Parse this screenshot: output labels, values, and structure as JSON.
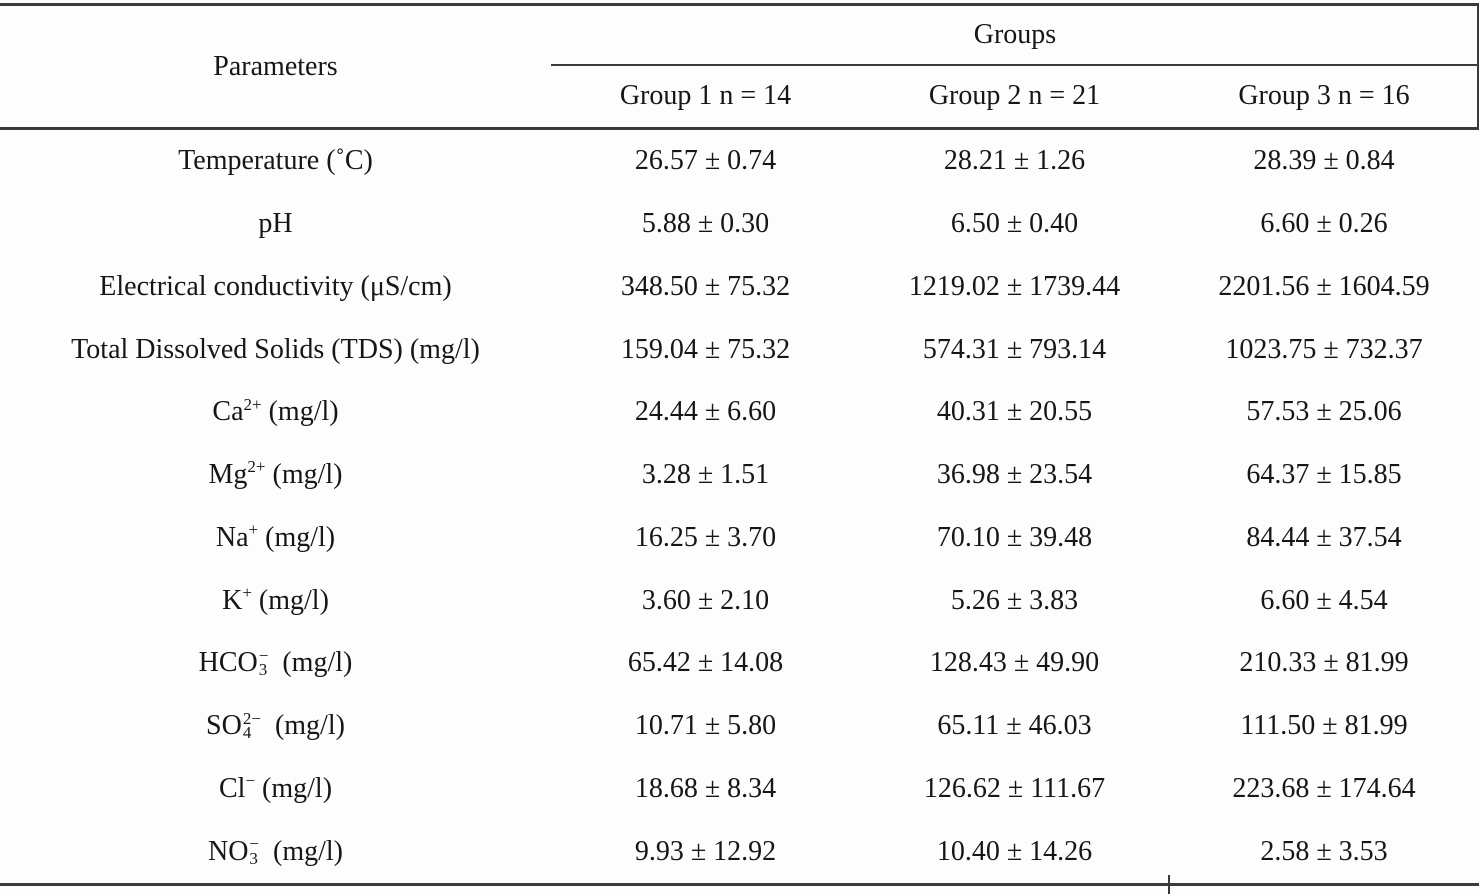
{
  "colors": {
    "background": "#fdfdfd",
    "text": "#161616",
    "rule": "#3a3a3a"
  },
  "table": {
    "header": {
      "parameters_label": "Parameters",
      "groups_label": "Groups",
      "group_columns": [
        "Group 1 n = 14",
        "Group 2 n = 21",
        "Group 3 n = 16"
      ]
    },
    "rows": [
      {
        "param": {
          "base": "Temperature (˚C)"
        },
        "values": [
          "26.57 ± 0.74",
          "28.21 ± 1.26",
          "28.39 ± 0.84"
        ]
      },
      {
        "param": {
          "base": "pH"
        },
        "values": [
          "5.88 ± 0.30",
          "6.50 ± 0.40",
          "6.60 ± 0.26"
        ]
      },
      {
        "param": {
          "base": "Electrical conductivity (μS/cm)"
        },
        "values": [
          "348.50 ± 75.32",
          "1219.02 ± 1739.44",
          "2201.56 ± 1604.59"
        ]
      },
      {
        "param": {
          "base": "Total Dissolved Solids (TDS) (mg/l)"
        },
        "values": [
          "159.04 ± 75.32",
          "574.31 ± 793.14",
          "1023.75 ± 732.37"
        ]
      },
      {
        "param": {
          "base": "Ca",
          "sup": "2+",
          "suffix": " (mg/l)"
        },
        "values": [
          "24.44 ± 6.60",
          "40.31 ± 20.55",
          "57.53 ± 25.06"
        ]
      },
      {
        "param": {
          "base": "Mg",
          "sup": "2+",
          "suffix": " (mg/l)"
        },
        "values": [
          "3.28 ± 1.51",
          "36.98 ± 23.54",
          "64.37 ± 15.85"
        ]
      },
      {
        "param": {
          "base": "Na",
          "sup": "+",
          "suffix": " (mg/l)"
        },
        "values": [
          "16.25 ± 3.70",
          "70.10 ± 39.48",
          "84.44 ± 37.54"
        ]
      },
      {
        "param": {
          "base": "K",
          "sup": "+",
          "suffix": " (mg/l)"
        },
        "values": [
          "3.60 ± 2.10",
          "5.26 ± 3.83",
          "6.60 ± 4.54"
        ]
      },
      {
        "param": {
          "base": "HCO",
          "sup": "−",
          "sub": "3",
          "stacked": true,
          "suffix": "  (mg/l)"
        },
        "values": [
          "65.42 ± 14.08",
          "128.43 ± 49.90",
          "210.33 ± 81.99"
        ]
      },
      {
        "param": {
          "base": "SO",
          "sup": "2−",
          "sub": "4",
          "stacked": true,
          "suffix": "  (mg/l)"
        },
        "values": [
          "10.71 ± 5.80",
          "65.11 ± 46.03",
          "111.50 ± 81.99"
        ]
      },
      {
        "param": {
          "base": "Cl",
          "sup": "−",
          "suffix": " (mg/l)"
        },
        "values": [
          "18.68 ± 8.34",
          "126.62 ± 111.67",
          "223.68 ± 174.64"
        ]
      },
      {
        "param": {
          "base": "NO",
          "sup": "−",
          "sub": "3",
          "stacked": true,
          "suffix": "  (mg/l)"
        },
        "values": [
          "9.93 ± 12.92",
          "10.40 ± 14.26",
          "2.58 ± 3.53"
        ]
      }
    ]
  }
}
